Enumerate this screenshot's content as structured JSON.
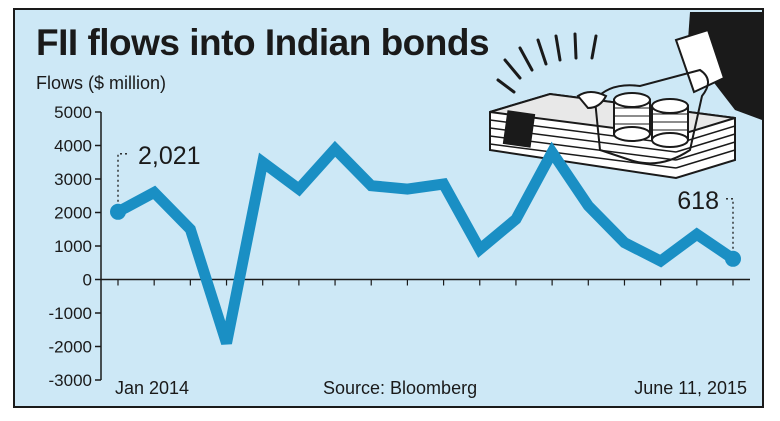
{
  "chart_data": {
    "type": "line",
    "title": "FII flows into Indian bonds",
    "ylabel": "Flows ($ million)",
    "xlabel": "",
    "ylim": [
      -3000,
      5000
    ],
    "yticks": [
      5000,
      4000,
      3000,
      2000,
      1000,
      0,
      -1000,
      -2000,
      -3000
    ],
    "x_start_label": "Jan 2014",
    "x_end_label": "June 11, 2015",
    "source": "Source: Bloomberg",
    "series": [
      {
        "values": [
          2021,
          2600,
          1500,
          -1900,
          3500,
          2700,
          3900,
          2800,
          2700,
          2850,
          900,
          1800,
          3800,
          2200,
          1100,
          550,
          1350,
          618
        ]
      }
    ],
    "annotations": [
      {
        "text": "2,021",
        "point_index": 0
      },
      {
        "text": "618",
        "point_index": 17
      }
    ],
    "line_color": "#1a8fc4",
    "background_color": "#cde8f6",
    "grid": false
  },
  "illustration": {
    "icon": "hand-holding-cash-and-coins-icon"
  }
}
